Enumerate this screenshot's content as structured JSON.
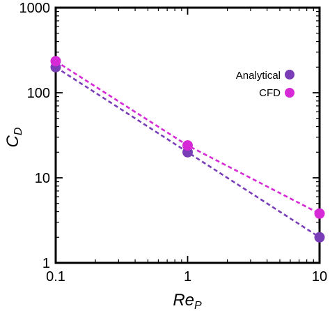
{
  "chart_data": {
    "type": "scatter",
    "xscale": "log",
    "yscale": "log",
    "xlim": [
      0.1,
      10
    ],
    "ylim": [
      1,
      1000
    ],
    "x_ticks": [
      0.1,
      1,
      10
    ],
    "x_tick_labels": [
      "0.1",
      "1",
      "10"
    ],
    "y_ticks": [
      1,
      10,
      100,
      1000
    ],
    "y_tick_labels": [
      "1",
      "10",
      "100",
      "1000"
    ],
    "xlabel": {
      "main": "Re",
      "sub": "P"
    },
    "ylabel": {
      "main": "C",
      "sub": "D"
    },
    "grid": false,
    "legend_position": "top-right",
    "series": [
      {
        "name": "Analytical",
        "color": "#7a3db8",
        "x": [
          0.1,
          1,
          10
        ],
        "y": [
          200,
          20,
          2
        ],
        "fit_line": "dashed"
      },
      {
        "name": "CFD",
        "color": "#d62ad6",
        "x": [
          0.1,
          1,
          10
        ],
        "y": [
          235,
          24,
          3.8
        ],
        "fit_line": "dashed"
      }
    ]
  }
}
